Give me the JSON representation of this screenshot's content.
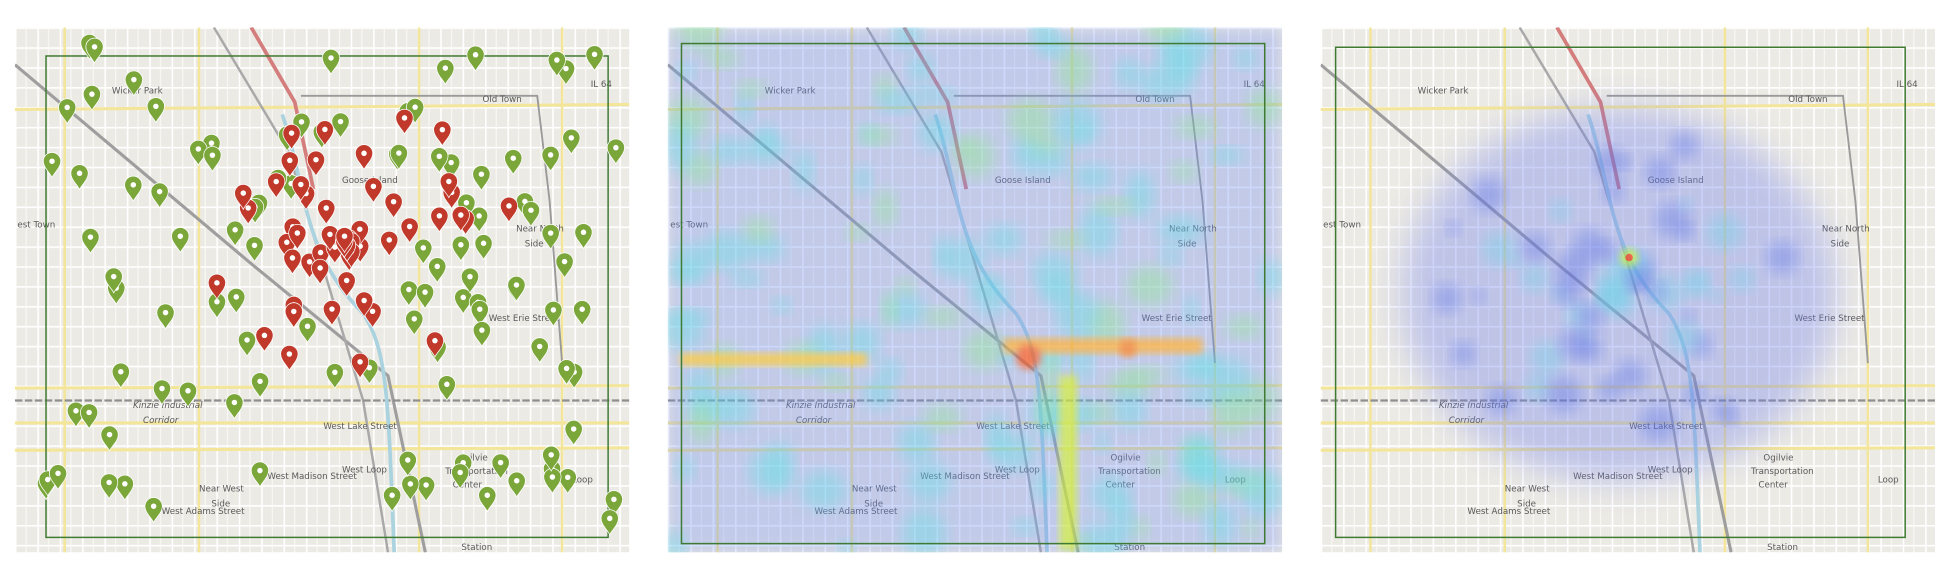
{
  "panels": [
    {
      "labels": [
        "Wicker Park",
        "Old Town",
        "IL 64",
        "Goose Island",
        "Near North",
        "Side",
        "est Town",
        "Kinzie Industrial",
        "Corridor",
        "West Lake Street",
        "West Loop",
        "West Madison Street",
        "Near West",
        "Side",
        "West Adams Street",
        "Ogilvie",
        "Transportation",
        "Center",
        "West Erie Street",
        "Loop",
        "Station"
      ]
    },
    {
      "labels": [
        "Wicker Park",
        "Old Town",
        "IL 64",
        "Goose Island",
        "Near North",
        "Side",
        "est Town",
        "Kinzie Industrial",
        "Corridor",
        "West Lake Street",
        "West Loop",
        "West Madison Street",
        "Near West",
        "Side",
        "West Adams Street",
        "Ogilvie",
        "Transportation",
        "Center",
        "West Erie Street",
        "Loop",
        "Station"
      ]
    },
    {
      "labels": [
        "Wicker Park",
        "Old Town",
        "IL 64",
        "Goose Island",
        "Near North",
        "Side",
        "est Town",
        "Kinzie Industrial",
        "Corridor",
        "West Lake Street",
        "West Loop",
        "West Madison Street",
        "Near West",
        "Side",
        "West Adams Street",
        "Ogilvie",
        "Transportation",
        "Center",
        "West Erie Street",
        "Loop",
        "Station"
      ]
    }
  ]
}
